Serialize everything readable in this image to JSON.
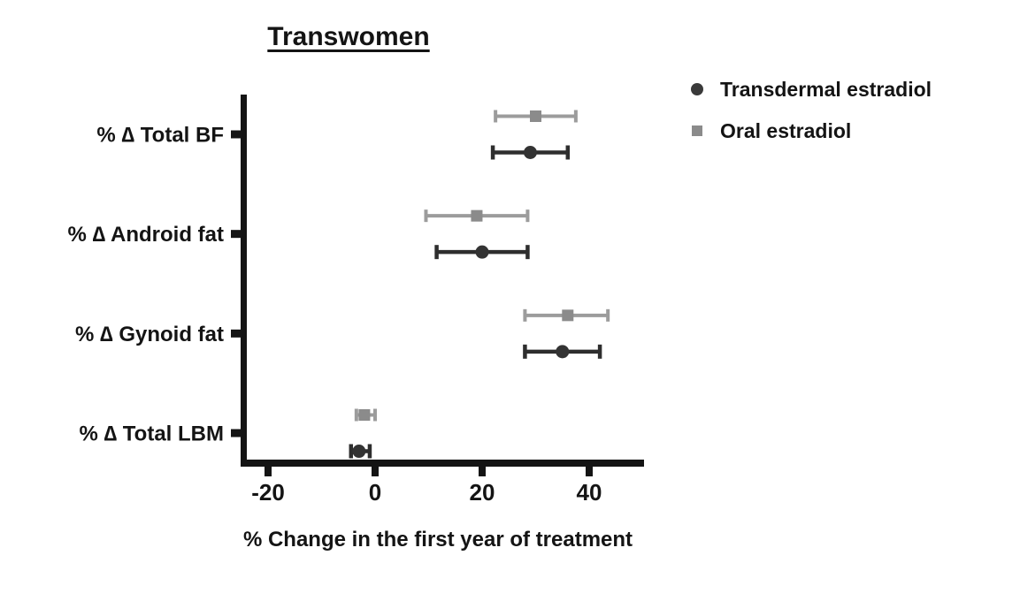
{
  "figure": {
    "title": "Transwomen",
    "x_axis_label": "% Change in the first year of treatment"
  },
  "legend": {
    "items": [
      {
        "label": "Transdermal estradiol",
        "marker": "circle",
        "color": "#3a3a3a"
      },
      {
        "label": "Oral estradiol",
        "marker": "square",
        "color": "#8b8b8b"
      }
    ]
  },
  "colors": {
    "axis": "#141414",
    "text": "#141414",
    "transdermal_line": "#2e2e2e",
    "transdermal_marker": "#333333",
    "oral_line": "#9c9c9c",
    "oral_marker": "#8b8b8b"
  },
  "chart_data": {
    "type": "scatter",
    "subtype": "horizontal-point-estimate-with-error-bars",
    "title": "Transwomen",
    "xlabel": "% Change in the first year of treatment",
    "ylabel": "",
    "categories": [
      "% ∆ Total BF",
      "% ∆ Android fat",
      "% ∆ Gynoid fat",
      "% ∆ Total LBM"
    ],
    "x_ticks": [
      -20,
      0,
      20,
      40
    ],
    "xlim": [
      -25,
      50
    ],
    "grid": false,
    "legend_position": "outside-upper-right",
    "series": [
      {
        "name": "Transdermal estradiol",
        "marker": "circle",
        "marker_color": "#333333",
        "line_color": "#2e2e2e",
        "points": [
          {
            "category": "% ∆ Total BF",
            "mean": 29,
            "ci_low": 22,
            "ci_high": 36
          },
          {
            "category": "% ∆ Android fat",
            "mean": 20,
            "ci_low": 11.5,
            "ci_high": 28.5
          },
          {
            "category": "% ∆ Gynoid fat",
            "mean": 35,
            "ci_low": 28,
            "ci_high": 42
          },
          {
            "category": "% ∆ Total LBM",
            "mean": -3,
            "ci_low": -4.5,
            "ci_high": -1
          }
        ]
      },
      {
        "name": "Oral estradiol",
        "marker": "square",
        "marker_color": "#8b8b8b",
        "line_color": "#9c9c9c",
        "points": [
          {
            "category": "% ∆ Total BF",
            "mean": 30,
            "ci_low": 22.5,
            "ci_high": 37.5
          },
          {
            "category": "% ∆ Android fat",
            "mean": 19,
            "ci_low": 9.5,
            "ci_high": 28.5
          },
          {
            "category": "% ∆ Gynoid fat",
            "mean": 36,
            "ci_low": 28,
            "ci_high": 43.5
          },
          {
            "category": "% ∆ Total LBM",
            "mean": -2,
            "ci_low": -3.5,
            "ci_high": 0
          }
        ]
      }
    ]
  }
}
